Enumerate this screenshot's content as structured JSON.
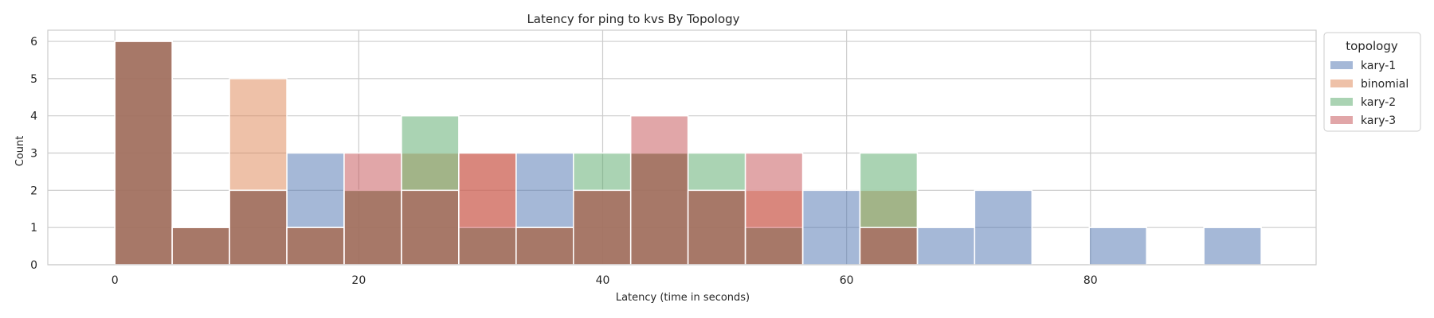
{
  "chart_data": {
    "type": "bar",
    "subtype": "overlaid-histogram",
    "title": "Latency for ping to kvs By Topology",
    "xlabel": "Latency (time in seconds)",
    "ylabel": "Count",
    "xlim": [
      -5.5,
      98.5
    ],
    "ylim": [
      0,
      6.3
    ],
    "xticks": [
      0,
      20,
      40,
      60,
      80
    ],
    "yticks": [
      0,
      1,
      2,
      3,
      4,
      5,
      6
    ],
    "grid": true,
    "bin_edges": [
      0,
      4.7,
      9.4,
      14.1,
      18.8,
      23.5,
      28.2,
      32.9,
      37.6,
      42.3,
      47.0,
      51.7,
      56.4,
      61.1,
      65.8,
      70.5,
      75.2,
      79.9,
      84.6,
      89.3,
      94.0
    ],
    "legend": {
      "title": "topology",
      "position": "upper-right-outside"
    },
    "series": [
      {
        "name": "kary-1",
        "color": "#4c72b0",
        "values": [
          6,
          1,
          2,
          3,
          2,
          2,
          1,
          3,
          2,
          3,
          2,
          1,
          2,
          1,
          1,
          2,
          0,
          1,
          0,
          1
        ]
      },
      {
        "name": "binomial",
        "color": "#dd8452",
        "values": [
          6,
          1,
          5,
          1,
          2,
          3,
          3,
          1,
          2,
          3,
          2,
          2,
          0,
          2,
          0,
          0,
          0,
          0,
          0,
          0
        ]
      },
      {
        "name": "kary-2",
        "color": "#55a868",
        "values": [
          6,
          1,
          2,
          1,
          2,
          4,
          1,
          1,
          3,
          3,
          3,
          1,
          0,
          3,
          0,
          0,
          0,
          0,
          0,
          0
        ]
      },
      {
        "name": "kary-3",
        "color": "#c44e52",
        "values": [
          6,
          1,
          2,
          1,
          3,
          2,
          3,
          1,
          2,
          4,
          2,
          3,
          0,
          1,
          0,
          0,
          0,
          0,
          0,
          0
        ]
      }
    ]
  }
}
